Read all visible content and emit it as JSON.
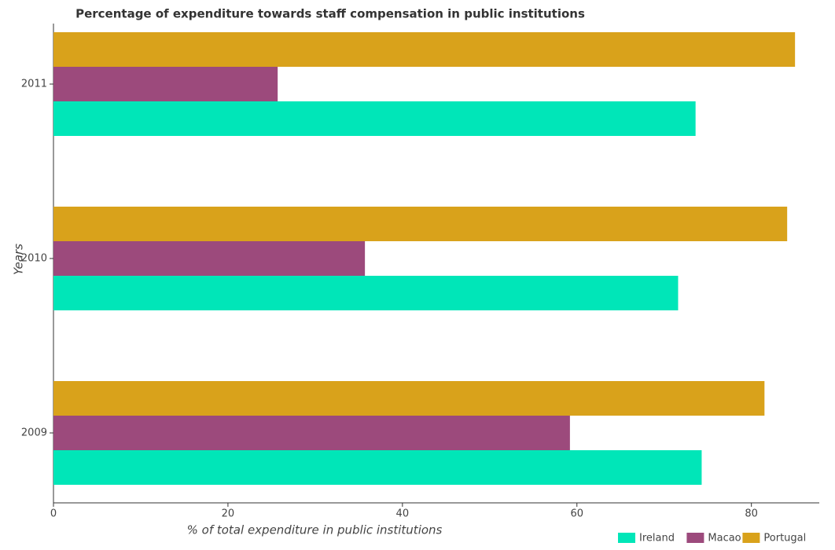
{
  "chart_data": {
    "type": "hbar",
    "title": "Percentage of expenditure towards staff compensation in public institutions",
    "x_label": "% of total expenditure in public institutions",
    "y_label": "Years",
    "categories": [
      "2009",
      "2010",
      "2011"
    ],
    "series": [
      {
        "name": "Ireland",
        "color": "#00e6b8",
        "values": [
          74.3,
          71.6,
          73.6
        ]
      },
      {
        "name": "Macao",
        "color": "#9c4a7c",
        "values": [
          59.2,
          35.7,
          25.7
        ]
      },
      {
        "name": "Portugal",
        "color": "#d9a21b",
        "values": [
          81.5,
          84.1,
          85.0
        ]
      }
    ],
    "xlim": [
      0,
      87.6
    ],
    "xticks": [
      0,
      20,
      40,
      60,
      80
    ],
    "legend": "lower right"
  }
}
